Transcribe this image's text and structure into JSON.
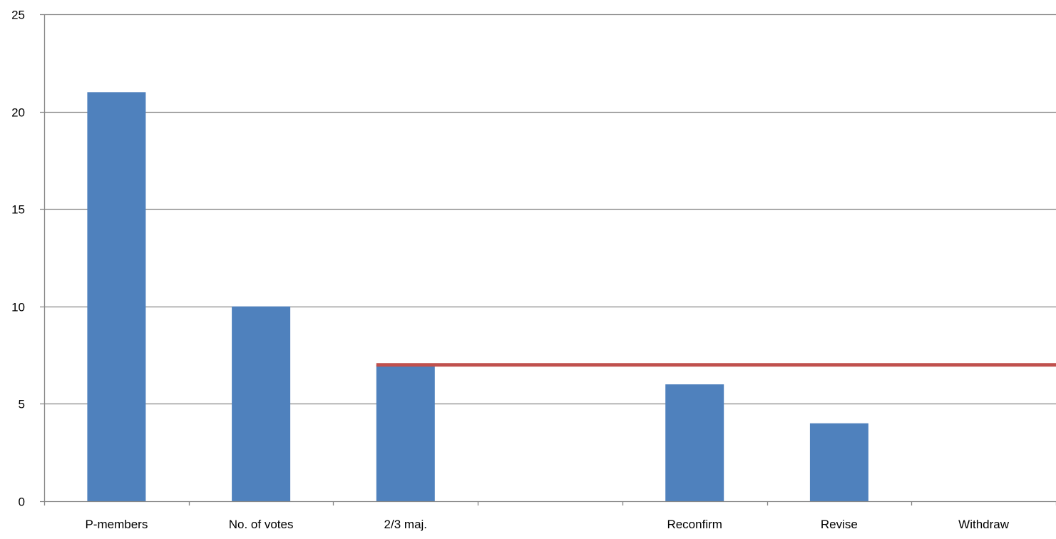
{
  "chart_data": {
    "type": "bar",
    "categories": [
      "P-members",
      "No. of votes",
      "2/3 maj.",
      "",
      "Reconfirm",
      "Revise",
      "Withdraw"
    ],
    "values": [
      21,
      10,
      7,
      null,
      6,
      4,
      null
    ],
    "ylim": [
      0,
      25
    ],
    "yticks": [
      0,
      5,
      10,
      15,
      20,
      25
    ],
    "grid": true,
    "threshold_line": {
      "value": 7,
      "from_category_index": 2,
      "color": "#C0504D"
    },
    "colors": {
      "bar": "#4F81BD",
      "threshold": "#C0504D",
      "grid": "#868686",
      "axis": "#868686"
    }
  }
}
